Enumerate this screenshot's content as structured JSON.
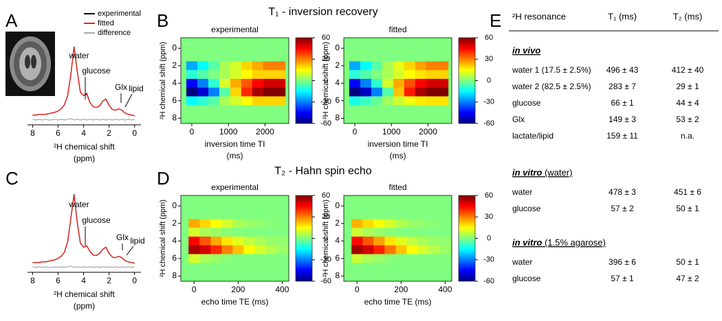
{
  "panel_labels": [
    "A",
    "B",
    "C",
    "D",
    "E"
  ],
  "headings": {
    "t1": "T₁ - inversion recovery",
    "t2": "T₂ - Hahn spin echo"
  },
  "chart_data": [
    {
      "type": "line",
      "xlabel": "²H chemical shift",
      "xlabel_unit": "(ppm)",
      "xlim": [
        8.4,
        -0.5
      ],
      "ylim": [
        -10,
        113
      ],
      "xticks": [
        8,
        6,
        4,
        2,
        0
      ],
      "x": [
        8,
        7.75,
        7.5,
        7.25,
        7,
        6.75,
        6.5,
        6.25,
        6,
        5.75,
        5.5,
        5.25,
        5,
        4.75,
        4.5,
        4.25,
        4,
        3.75,
        3.5,
        3.25,
        3,
        2.75,
        2.5,
        2.25,
        2,
        1.75,
        1.5,
        1.25,
        1,
        0.75,
        0.5,
        0.25,
        0
      ],
      "series": [
        {
          "name": "experimental",
          "color": "#000000",
          "values": [
            2,
            2,
            3,
            3,
            3,
            4,
            5,
            6,
            8,
            11,
            17,
            30,
            60,
            100,
            65,
            35,
            30,
            33,
            20,
            14,
            13,
            15,
            22,
            25,
            16,
            10,
            9,
            11,
            9,
            5,
            3,
            2,
            1
          ]
        },
        {
          "name": "fitted",
          "color": "#e8201c",
          "values": [
            2,
            2,
            3,
            3,
            3,
            4,
            5,
            6,
            8,
            11,
            17,
            30,
            60,
            99,
            65,
            35,
            30,
            32,
            20,
            14,
            13,
            15,
            22,
            25,
            16,
            10,
            9,
            11,
            9,
            5,
            3,
            2,
            1
          ]
        },
        {
          "name": "difference",
          "color": "#aaaaaa",
          "values": [
            -4,
            -5,
            -4,
            -5,
            -4,
            -5,
            -5,
            -4,
            -5,
            -4,
            -5,
            -4,
            -3,
            -5,
            -4,
            -5,
            -4,
            -5,
            -4,
            -5,
            -4,
            -5,
            -4,
            -5,
            -4,
            -5,
            -4,
            -5,
            -4,
            -5,
            -4,
            -5,
            -4
          ]
        }
      ],
      "annotations": [
        "water",
        "glucose",
        "Glx",
        "lipid"
      ]
    },
    {
      "type": "heatmap",
      "title": "experimental",
      "xlabel": "inversion time TI",
      "xlabel_unit": "(ms)",
      "ylabel": "²H chemical shift (ppm)",
      "xlim": [
        -300,
        2650
      ],
      "ylim": [
        -1.2,
        8.6
      ],
      "xticks": [
        0,
        1000,
        2000
      ],
      "yticks": [
        0,
        2,
        4,
        6,
        8
      ],
      "clim": [
        -60,
        60
      ],
      "cticks": [
        -60,
        -30,
        0,
        30,
        60
      ],
      "x": [
        0,
        300,
        600,
        900,
        1200,
        1500,
        1800,
        2100,
        2400
      ],
      "y": [
        -1,
        0,
        1,
        2,
        3,
        4,
        5,
        6,
        7,
        8
      ],
      "values": [
        [
          0,
          0,
          0,
          0,
          0,
          0,
          0,
          0,
          0
        ],
        [
          0,
          0,
          0,
          0,
          0,
          0,
          0,
          0,
          0
        ],
        [
          0,
          0,
          0,
          0,
          0,
          0,
          0,
          0,
          0
        ],
        [
          -25,
          -15,
          -5,
          5,
          10,
          20,
          25,
          30,
          30
        ],
        [
          -10,
          -5,
          0,
          5,
          10,
          15,
          20,
          20,
          20
        ],
        [
          -45,
          -30,
          -10,
          10,
          25,
          35,
          45,
          50,
          50
        ],
        [
          -60,
          -50,
          -30,
          -5,
          20,
          40,
          55,
          60,
          60
        ],
        [
          -15,
          -10,
          -5,
          5,
          10,
          15,
          20,
          20,
          20
        ],
        [
          0,
          0,
          0,
          0,
          0,
          0,
          0,
          0,
          0
        ],
        [
          0,
          0,
          0,
          0,
          0,
          0,
          0,
          0,
          0
        ]
      ]
    },
    {
      "type": "heatmap",
      "title": "fitted",
      "xlabel": "inversion time TI",
      "xlabel_unit": "(ms)",
      "ylabel": "²H chemical shift (ppm)",
      "xlim": [
        -300,
        2650
      ],
      "ylim": [
        -1.2,
        8.6
      ],
      "xticks": [
        0,
        1000,
        2000
      ],
      "yticks": [
        0,
        2,
        4,
        6,
        8
      ],
      "clim": [
        -60,
        60
      ],
      "cticks": [
        -60,
        -30,
        0,
        30,
        60
      ],
      "x": [
        0,
        300,
        600,
        900,
        1200,
        1500,
        1800,
        2100,
        2400
      ],
      "y": [
        -1,
        0,
        1,
        2,
        3,
        4,
        5,
        6,
        7,
        8
      ],
      "values": [
        [
          0,
          0,
          0,
          0,
          0,
          0,
          0,
          0,
          0
        ],
        [
          0,
          0,
          0,
          0,
          0,
          0,
          0,
          0,
          0
        ],
        [
          0,
          0,
          0,
          0,
          0,
          0,
          0,
          0,
          0
        ],
        [
          -25,
          -15,
          -5,
          5,
          12,
          20,
          26,
          30,
          30
        ],
        [
          -10,
          -5,
          0,
          5,
          10,
          15,
          18,
          20,
          20
        ],
        [
          -45,
          -30,
          -10,
          10,
          25,
          36,
          45,
          50,
          50
        ],
        [
          -60,
          -52,
          -30,
          -5,
          22,
          42,
          55,
          60,
          60
        ],
        [
          -12,
          -8,
          -3,
          4,
          9,
          13,
          17,
          18,
          18
        ],
        [
          0,
          0,
          0,
          0,
          0,
          0,
          0,
          0,
          0
        ],
        [
          0,
          0,
          0,
          0,
          0,
          0,
          0,
          0,
          0
        ]
      ]
    },
    {
      "type": "line",
      "xlabel": "²H chemical shift",
      "xlabel_unit": "(ppm)",
      "xlim": [
        8.4,
        -0.5
      ],
      "ylim": [
        -10,
        113
      ],
      "xticks": [
        8,
        6,
        4,
        2,
        0
      ],
      "x": [
        8,
        7.75,
        7.5,
        7.25,
        7,
        6.75,
        6.5,
        6.25,
        6,
        5.75,
        5.5,
        5.25,
        5,
        4.75,
        4.5,
        4.25,
        4,
        3.75,
        3.5,
        3.25,
        3,
        2.75,
        2.5,
        2.25,
        2,
        1.75,
        1.5,
        1.25,
        1,
        0.75,
        0.5,
        0.25,
        0
      ],
      "series": [
        {
          "color": "#000000",
          "values": [
            2,
            2,
            2,
            3,
            3,
            4,
            5,
            6,
            8,
            11,
            17,
            32,
            65,
            100,
            60,
            30,
            24,
            26,
            18,
            13,
            12,
            15,
            21,
            24,
            15,
            10,
            9,
            11,
            9,
            5,
            3,
            2,
            1
          ]
        },
        {
          "color": "#e8201c",
          "values": [
            2,
            2,
            2,
            3,
            3,
            4,
            5,
            6,
            8,
            11,
            17,
            32,
            65,
            99,
            60,
            30,
            24,
            26,
            18,
            13,
            12,
            15,
            21,
            24,
            15,
            10,
            9,
            11,
            9,
            5,
            3,
            2,
            1
          ]
        },
        {
          "color": "#aaaaaa",
          "values": [
            -4,
            -5,
            -4,
            -5,
            -4,
            -5,
            -5,
            -4,
            -5,
            -4,
            -5,
            -4,
            -3,
            -5,
            -4,
            -5,
            -4,
            -5,
            -4,
            -5,
            -4,
            -5,
            -4,
            -5,
            -4,
            -5,
            -4,
            -5,
            -4,
            -5,
            -4,
            -5,
            -4
          ]
        }
      ],
      "annotations": [
        "water",
        "glucose",
        "Glx",
        "lipid"
      ]
    },
    {
      "type": "heatmap",
      "title": "experimental",
      "xlabel": "echo time TE (ms)",
      "ylabel": "²H chemical shift (ppm)",
      "xlim": [
        -60,
        430
      ],
      "ylim": [
        -1.2,
        8.6
      ],
      "xticks": [
        0,
        200,
        400
      ],
      "yticks": [
        0,
        2,
        4,
        6,
        8
      ],
      "clim": [
        -60,
        60
      ],
      "cticks": [
        -60,
        -30,
        0,
        30,
        60
      ],
      "x": [
        0,
        50,
        100,
        150,
        200,
        250,
        300,
        350,
        400
      ],
      "y": [
        -1,
        0,
        1,
        2,
        3,
        4,
        5,
        6,
        7,
        8
      ],
      "values": [
        [
          0,
          0,
          0,
          0,
          0,
          0,
          0,
          0,
          0
        ],
        [
          0,
          0,
          0,
          0,
          0,
          0,
          0,
          0,
          0
        ],
        [
          0,
          0,
          0,
          0,
          0,
          0,
          0,
          0,
          0
        ],
        [
          25,
          20,
          15,
          10,
          5,
          3,
          2,
          1,
          0
        ],
        [
          10,
          5,
          3,
          1,
          0,
          0,
          0,
          0,
          0
        ],
        [
          45,
          35,
          25,
          18,
          12,
          8,
          5,
          3,
          2
        ],
        [
          55,
          50,
          40,
          30,
          22,
          15,
          10,
          6,
          3
        ],
        [
          10,
          5,
          3,
          1,
          0,
          0,
          0,
          0,
          0
        ],
        [
          0,
          0,
          0,
          0,
          0,
          0,
          0,
          0,
          0
        ],
        [
          0,
          0,
          0,
          0,
          0,
          0,
          0,
          0,
          0
        ]
      ]
    },
    {
      "type": "heatmap",
      "title": "fitted",
      "xlabel": "echo time TE (ms)",
      "ylabel": "²H chemical shift (ppm)",
      "xlim": [
        -60,
        430
      ],
      "ylim": [
        -1.2,
        8.6
      ],
      "xticks": [
        0,
        200,
        400
      ],
      "yticks": [
        0,
        2,
        4,
        6,
        8
      ],
      "clim": [
        -60,
        60
      ],
      "cticks": [
        -60,
        -30,
        0,
        30,
        60
      ],
      "x": [
        0,
        50,
        100,
        150,
        200,
        250,
        300,
        350,
        400
      ],
      "y": [
        -1,
        0,
        1,
        2,
        3,
        4,
        5,
        6,
        7,
        8
      ],
      "values": [
        [
          0,
          0,
          0,
          0,
          0,
          0,
          0,
          0,
          0
        ],
        [
          0,
          0,
          0,
          0,
          0,
          0,
          0,
          0,
          0
        ],
        [
          0,
          0,
          0,
          0,
          0,
          0,
          0,
          0,
          0
        ],
        [
          24,
          19,
          14,
          10,
          6,
          3,
          2,
          1,
          0
        ],
        [
          9,
          5,
          3,
          1,
          0,
          0,
          0,
          0,
          0
        ],
        [
          44,
          35,
          26,
          18,
          12,
          8,
          5,
          3,
          2
        ],
        [
          56,
          50,
          41,
          31,
          22,
          15,
          10,
          6,
          3
        ],
        [
          9,
          5,
          3,
          1,
          0,
          0,
          0,
          0,
          0
        ],
        [
          0,
          0,
          0,
          0,
          0,
          0,
          0,
          0,
          0
        ],
        [
          0,
          0,
          0,
          0,
          0,
          0,
          0,
          0,
          0
        ]
      ]
    }
  ],
  "table": {
    "columns": [
      "²H resonance",
      "T₁ (ms)",
      "T₂ (ms)"
    ],
    "sections": [
      {
        "title": "in vivo",
        "rows": [
          [
            "water 1 (17.5 ± 2.5%)",
            "496 ± 43",
            "412 ± 40"
          ],
          [
            "water 2 (82.5 ± 2.5%)",
            "283 ± 7",
            "29 ± 1"
          ],
          [
            "glucose",
            "66 ± 1",
            "44 ± 4"
          ],
          [
            "Glx",
            "149 ± 3",
            "53 ± 2"
          ],
          [
            "lactate/lipid",
            "159 ± 11",
            "n.a."
          ]
        ]
      },
      {
        "title": "in vitro",
        "note": "(water)",
        "rows": [
          [
            "water",
            "478 ± 3",
            "451 ± 6"
          ],
          [
            "glucose",
            "57 ± 2",
            "50 ± 1"
          ]
        ]
      },
      {
        "title": "in vitro",
        "note": "(1.5% agarose)",
        "rows": [
          [
            "water",
            "396 ± 6",
            "50 ± 1"
          ],
          [
            "glucose",
            "57 ± 1",
            "47 ± 2"
          ]
        ]
      }
    ]
  }
}
